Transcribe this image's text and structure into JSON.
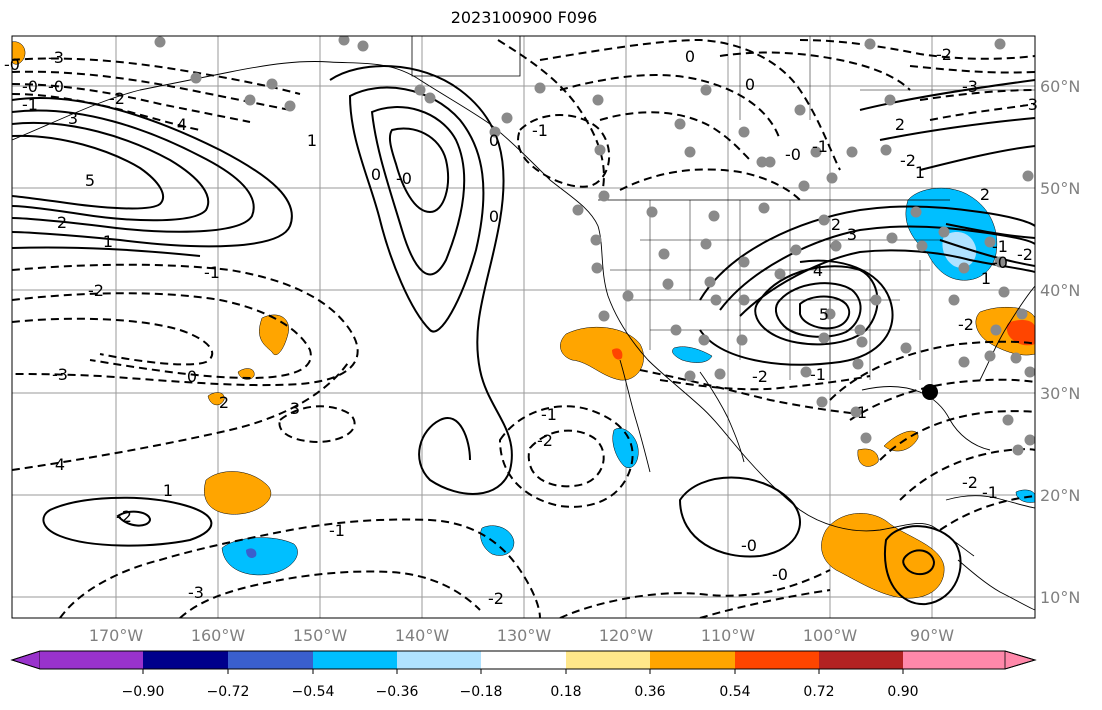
{
  "title": "2023100900 F096",
  "map": {
    "lon_labels": [
      "170°W",
      "160°W",
      "150°W",
      "140°W",
      "130°W",
      "120°W",
      "110°W",
      "100°W",
      "90°W"
    ],
    "lat_labels": [
      "60°N",
      "50°N",
      "40°N",
      "30°N",
      "20°N",
      "10°N"
    ]
  },
  "colorbar": {
    "ticks": [
      "−0.90",
      "−0.72",
      "−0.54",
      "−0.36",
      "−0.18",
      "0.18",
      "0.36",
      "0.54",
      "0.72",
      "0.90"
    ],
    "colors": [
      "#9932cc",
      "#00008b",
      "#3a5fcd",
      "#00bfff",
      "#b0e2ff",
      "#ffffff",
      "#ffe78a",
      "#ffa500",
      "#ff4500",
      "#b22222",
      "#ff88aa"
    ]
  },
  "contour_labels": [
    "-3",
    "-0",
    "-1",
    "3",
    "-2",
    "4",
    "5",
    "2",
    "1",
    "-1",
    "-2",
    "-3",
    "0",
    "2",
    "3",
    "4",
    "1",
    "-2",
    "-1",
    "-3",
    "-2",
    "-1",
    "-2",
    "-0",
    "-0",
    "1",
    "0",
    "-0",
    "0",
    "0",
    "-1",
    "0",
    "-0",
    "-1",
    "0",
    "-0",
    "-2",
    "-1",
    "1",
    "2",
    "3",
    "4",
    "5",
    "-2",
    "-3",
    "2",
    "-2",
    "1",
    "2",
    "1",
    "-2",
    "-1",
    "-0",
    "-0",
    "-3",
    "-2",
    "-2",
    "-1"
  ]
}
